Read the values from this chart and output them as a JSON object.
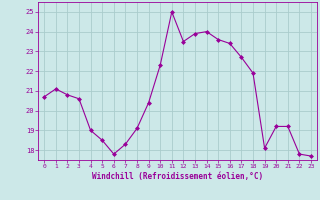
{
  "x": [
    0,
    1,
    2,
    3,
    4,
    5,
    6,
    7,
    8,
    9,
    10,
    11,
    12,
    13,
    14,
    15,
    16,
    17,
    18,
    19,
    20,
    21,
    22,
    23
  ],
  "y": [
    20.7,
    21.1,
    20.8,
    20.6,
    19.0,
    18.5,
    17.8,
    18.3,
    19.1,
    20.4,
    22.3,
    25.0,
    23.5,
    23.9,
    24.0,
    23.6,
    23.4,
    22.7,
    21.9,
    18.1,
    19.2,
    19.2,
    17.8,
    17.7
  ],
  "line_color": "#990099",
  "marker": "D",
  "marker_size": 2,
  "bg_color": "#cce8e8",
  "grid_color": "#aacccc",
  "xlabel": "Windchill (Refroidissement éolien,°C)",
  "xlabel_color": "#990099",
  "tick_color": "#990099",
  "label_color": "#990099",
  "ylim": [
    17.5,
    25.5
  ],
  "yticks": [
    18,
    19,
    20,
    21,
    22,
    23,
    24,
    25
  ],
  "xlim": [
    -0.5,
    23.5
  ],
  "xticks": [
    0,
    1,
    2,
    3,
    4,
    5,
    6,
    7,
    8,
    9,
    10,
    11,
    12,
    13,
    14,
    15,
    16,
    17,
    18,
    19,
    20,
    21,
    22,
    23
  ]
}
